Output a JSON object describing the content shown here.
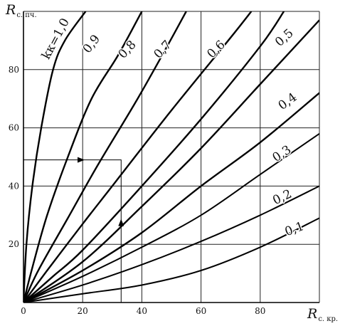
{
  "chart_data": {
    "type": "line",
    "x_label": {
      "main": "R",
      "sub": "с. кр."
    },
    "y_label": {
      "main": "R",
      "sub": "с. пч."
    },
    "xlim": [
      0,
      100
    ],
    "ylim": [
      0,
      100
    ],
    "x_ticks": [
      0,
      20,
      40,
      60,
      80
    ],
    "y_ticks": [
      20,
      40,
      60,
      80
    ],
    "grid": true,
    "series": [
      {
        "name": "k_к=1,0",
        "k": 1.0,
        "label": "kк=1,0",
        "points": [
          [
            0,
            0
          ],
          [
            1,
            20
          ],
          [
            3,
            40
          ],
          [
            6,
            60
          ],
          [
            10,
            80
          ],
          [
            14,
            90
          ],
          [
            21,
            100
          ]
        ]
      },
      {
        "name": "0,9",
        "k": 0.9,
        "label": "0,9",
        "points": [
          [
            0,
            0
          ],
          [
            3,
            12
          ],
          [
            8,
            30
          ],
          [
            15,
            50
          ],
          [
            23,
            70
          ],
          [
            32,
            85
          ],
          [
            40,
            100
          ]
        ]
      },
      {
        "name": "0,8",
        "k": 0.8,
        "label": "0,8",
        "points": [
          [
            0,
            0
          ],
          [
            5,
            11
          ],
          [
            15,
            29
          ],
          [
            25,
            47
          ],
          [
            38,
            69
          ],
          [
            48,
            87
          ],
          [
            55,
            100
          ]
        ]
      },
      {
        "name": "0,7",
        "k": 0.7,
        "label": "0,7",
        "points": [
          [
            0,
            0
          ],
          [
            8,
            11
          ],
          [
            20,
            27
          ],
          [
            30,
            40
          ],
          [
            50,
            66
          ],
          [
            70,
            91
          ],
          [
            77,
            100
          ]
        ]
      },
      {
        "name": "0,6",
        "k": 0.6,
        "label": "0,6",
        "points": [
          [
            0,
            0
          ],
          [
            10,
            9
          ],
          [
            20,
            18
          ],
          [
            40,
            40
          ],
          [
            60,
            63
          ],
          [
            80,
            88
          ],
          [
            88,
            100
          ]
        ]
      },
      {
        "name": "0,5",
        "k": 0.5,
        "label": "0,5",
        "points": [
          [
            0,
            0
          ],
          [
            20,
            14
          ],
          [
            40,
            33
          ],
          [
            60,
            53
          ],
          [
            80,
            75
          ],
          [
            100,
            97
          ]
        ]
      },
      {
        "name": "0,4",
        "k": 0.4,
        "label": "0,4",
        "points": [
          [
            0,
            0
          ],
          [
            20,
            11
          ],
          [
            40,
            24
          ],
          [
            60,
            40
          ],
          [
            80,
            55
          ],
          [
            100,
            72
          ]
        ]
      },
      {
        "name": "0,3",
        "k": 0.3,
        "label": "0,3",
        "points": [
          [
            0,
            0
          ],
          [
            20,
            9
          ],
          [
            40,
            19
          ],
          [
            60,
            30
          ],
          [
            80,
            44
          ],
          [
            100,
            58
          ]
        ]
      },
      {
        "name": "0,2",
        "k": 0.2,
        "label": "0,2",
        "points": [
          [
            0,
            0
          ],
          [
            20,
            6
          ],
          [
            40,
            13
          ],
          [
            60,
            21
          ],
          [
            80,
            30
          ],
          [
            100,
            40
          ]
        ]
      },
      {
        "name": "0,1",
        "k": 0.1,
        "label": "0,1",
        "points": [
          [
            0,
            0
          ],
          [
            20,
            3
          ],
          [
            40,
            6
          ],
          [
            60,
            11
          ],
          [
            80,
            19
          ],
          [
            100,
            29
          ]
        ]
      }
    ],
    "example_path": {
      "points": [
        [
          33,
          0
        ],
        [
          33,
          49
        ],
        [
          0,
          49
        ]
      ]
    }
  }
}
